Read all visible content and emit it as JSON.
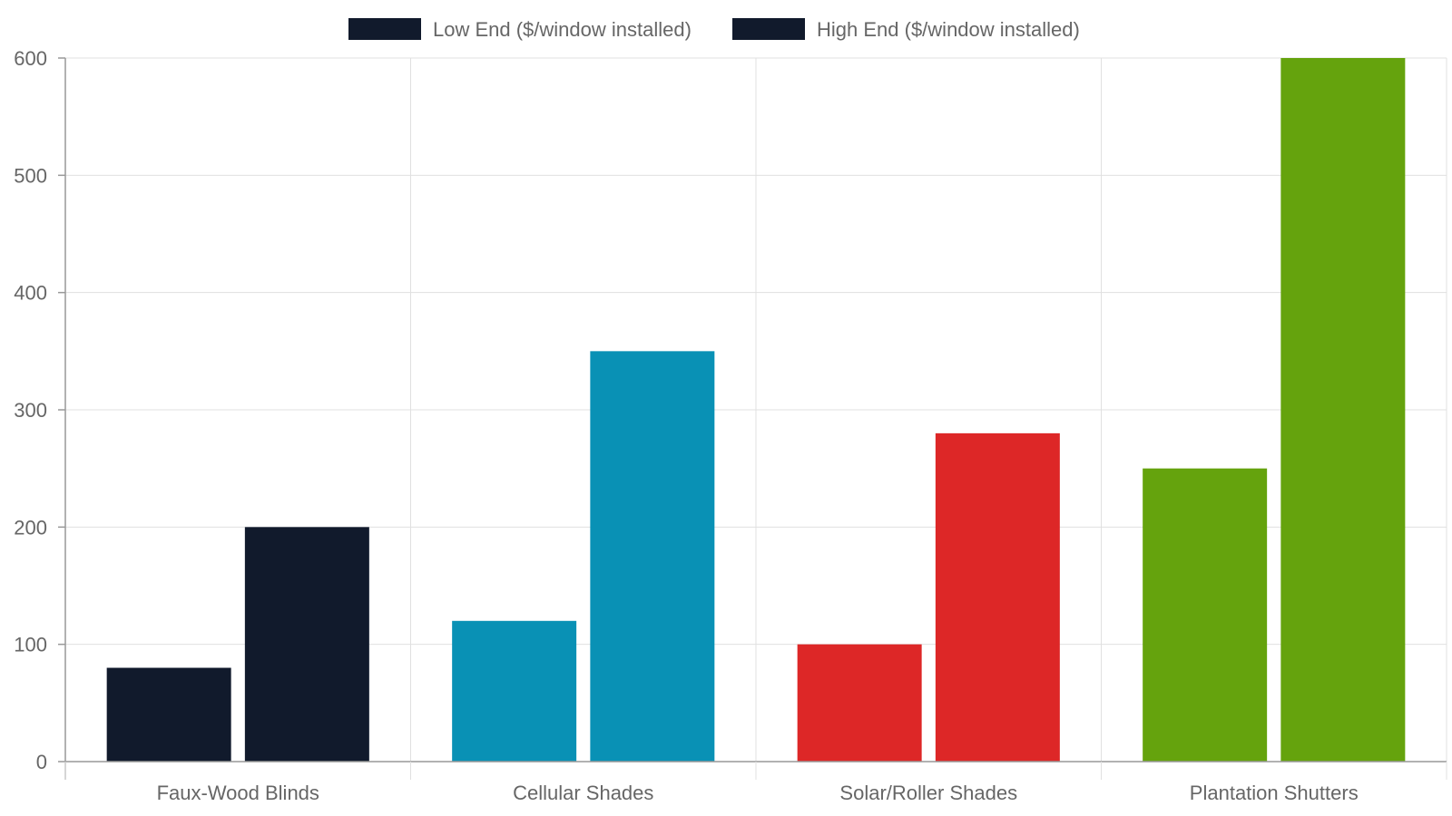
{
  "chart_data": {
    "type": "bar",
    "title": "",
    "xlabel": "",
    "ylabel": "",
    "categories": [
      "Faux-Wood Blinds",
      "Cellular Shades",
      "Solar/Roller Shades",
      "Plantation Shutters"
    ],
    "series": [
      {
        "name": "Low End ($/window installed)",
        "values": [
          80,
          120,
          100,
          250
        ]
      },
      {
        "name": "High End ($/window installed)",
        "values": [
          200,
          350,
          280,
          600
        ]
      }
    ],
    "category_colors": [
      "#111a2c",
      "#0991b5",
      "#dd2727",
      "#65a30d"
    ],
    "legend_swatch_color": "#111a2c",
    "ylim": [
      0,
      600
    ],
    "yticks": [
      0,
      100,
      200,
      300,
      400,
      500,
      600
    ],
    "grid": true,
    "legend_position": "top-center"
  }
}
